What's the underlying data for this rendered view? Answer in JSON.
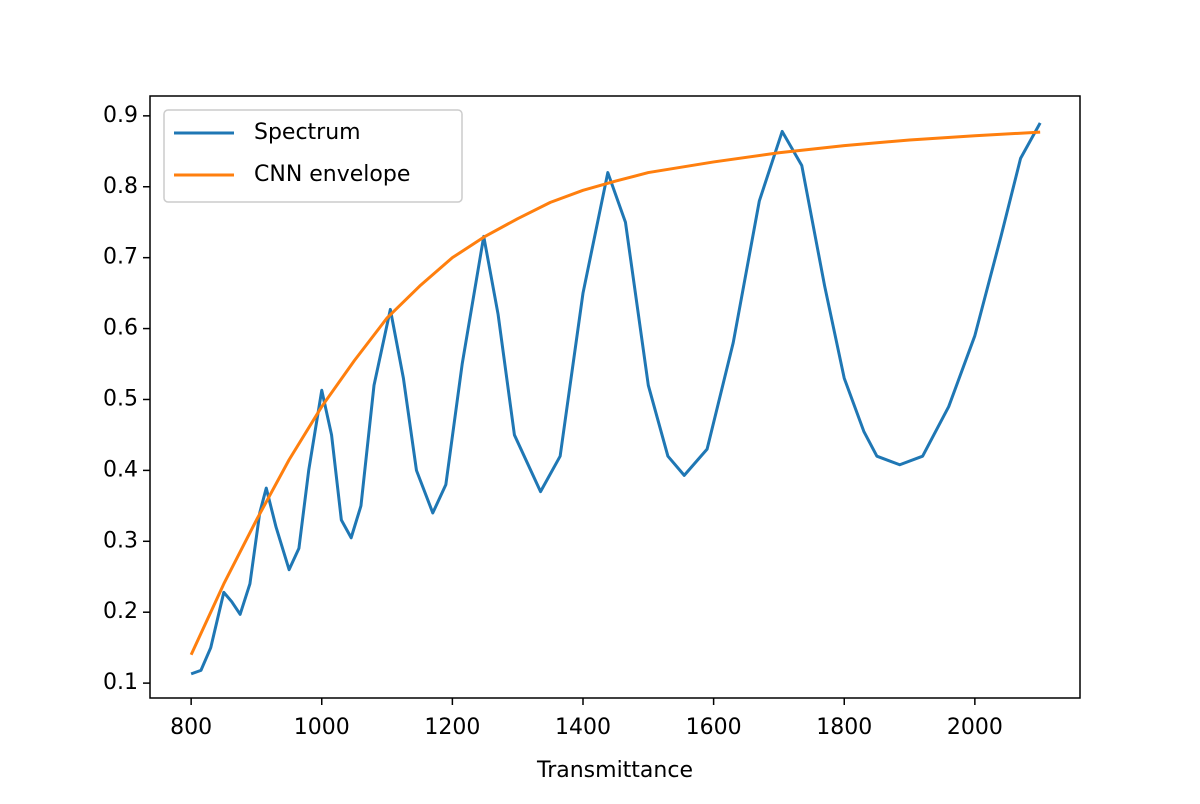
{
  "chart_data": {
    "type": "line",
    "xlabel": "Transmittance",
    "xlim": [
      737,
      2161
    ],
    "ylim": [
      0.079,
      0.928
    ],
    "xticks": [
      800,
      1000,
      1200,
      1400,
      1600,
      1800,
      2000
    ],
    "yticks": [
      0.1,
      0.2,
      0.3,
      0.4,
      0.5,
      0.6,
      0.7,
      0.8,
      0.9
    ],
    "legend": "upper left",
    "series": [
      {
        "name": "Spectrum",
        "color": "#1f77b4",
        "x": [
          800,
          815,
          830,
          850,
          862,
          875,
          890,
          905,
          915,
          930,
          950,
          965,
          980,
          1000,
          1015,
          1030,
          1045,
          1060,
          1080,
          1105,
          1125,
          1145,
          1170,
          1190,
          1215,
          1248,
          1270,
          1295,
          1335,
          1365,
          1400,
          1438,
          1465,
          1500,
          1530,
          1555,
          1590,
          1630,
          1670,
          1705,
          1735,
          1770,
          1800,
          1830,
          1850,
          1885,
          1920,
          1960,
          2000,
          2040,
          2070,
          2100
        ],
        "values": [
          0.113,
          0.118,
          0.15,
          0.228,
          0.215,
          0.197,
          0.24,
          0.34,
          0.375,
          0.32,
          0.26,
          0.29,
          0.4,
          0.513,
          0.45,
          0.33,
          0.305,
          0.35,
          0.52,
          0.627,
          0.53,
          0.4,
          0.34,
          0.38,
          0.55,
          0.73,
          0.62,
          0.45,
          0.37,
          0.42,
          0.65,
          0.82,
          0.75,
          0.52,
          0.42,
          0.393,
          0.43,
          0.58,
          0.78,
          0.878,
          0.83,
          0.66,
          0.53,
          0.455,
          0.42,
          0.408,
          0.42,
          0.49,
          0.59,
          0.73,
          0.84,
          0.89
        ]
      },
      {
        "name": "CNN envelope",
        "color": "#ff7f0e",
        "x": [
          800,
          850,
          900,
          950,
          1000,
          1050,
          1100,
          1150,
          1200,
          1250,
          1300,
          1350,
          1400,
          1450,
          1500,
          1600,
          1700,
          1800,
          1900,
          2000,
          2100
        ],
        "values": [
          0.14,
          0.24,
          0.33,
          0.415,
          0.49,
          0.555,
          0.615,
          0.66,
          0.7,
          0.73,
          0.755,
          0.778,
          0.795,
          0.808,
          0.82,
          0.835,
          0.848,
          0.858,
          0.866,
          0.872,
          0.877
        ]
      }
    ]
  }
}
